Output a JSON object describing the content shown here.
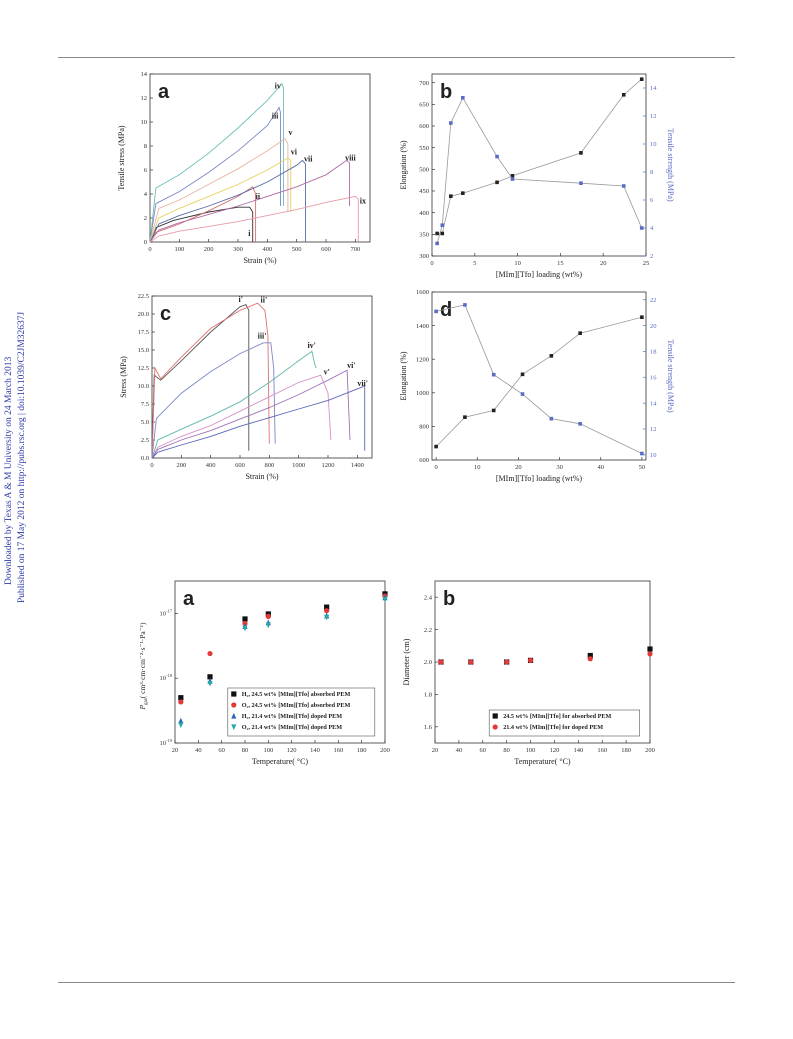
{
  "watermark": {
    "line1": "Downloaded by Texas A & M University on 24 March 2013",
    "line2": "Published on 17 May 2012 on http://pubs.rsc.org | doi:10.1039/C2JM32637J",
    "color": "#2a3aa8"
  },
  "chart_data": [
    {
      "id": "fig1a",
      "type": "line",
      "panel_label": "a",
      "xlabel": "Strain (%)",
      "ylabel": "Tensile stress (MPa)",
      "xlim": [
        0,
        750
      ],
      "ylim": [
        0,
        14
      ],
      "xticks": [
        0,
        100,
        200,
        300,
        400,
        500,
        600,
        700
      ],
      "yticks": [
        0,
        2,
        4,
        6,
        8,
        10,
        12,
        14
      ],
      "series": [
        {
          "name": "i",
          "color": "#303030",
          "x": [
            0,
            20,
            80,
            200,
            300,
            340,
            350,
            350
          ],
          "y": [
            0,
            1.2,
            1.8,
            2.5,
            2.9,
            2.9,
            2.5,
            0
          ]
        },
        {
          "name": "ii",
          "color": "#d66e6e",
          "x": [
            0,
            20,
            100,
            200,
            300,
            350,
            360,
            360
          ],
          "y": [
            0,
            0.8,
            1.5,
            2.6,
            3.8,
            4.6,
            4.0,
            0
          ]
        },
        {
          "name": "iii",
          "color": "#7a86c8",
          "x": [
            0,
            20,
            100,
            200,
            300,
            400,
            440,
            445,
            445
          ],
          "y": [
            0,
            3.2,
            4.2,
            5.8,
            7.6,
            9.7,
            11.2,
            10.8,
            3.0
          ]
        },
        {
          "name": "iv",
          "color": "#6ac0b8",
          "x": [
            0,
            20,
            100,
            200,
            300,
            400,
            450,
            455,
            455
          ],
          "y": [
            0,
            4.5,
            5.6,
            7.4,
            9.5,
            11.8,
            13.2,
            12.8,
            3.0
          ]
        },
        {
          "name": "v",
          "color": "#e8b4a0",
          "x": [
            0,
            30,
            100,
            200,
            300,
            400,
            460,
            470,
            470
          ],
          "y": [
            0,
            2.8,
            3.5,
            4.8,
            6.1,
            7.6,
            8.6,
            8.2,
            2.5
          ]
        },
        {
          "name": "vi",
          "color": "#e6d060",
          "x": [
            0,
            30,
            100,
            200,
            300,
            400,
            470,
            480,
            480
          ],
          "y": [
            0,
            2.0,
            2.8,
            3.8,
            4.8,
            6.0,
            7.0,
            6.8,
            2.5
          ]
        },
        {
          "name": "vii",
          "color": "#5a6aa8",
          "x": [
            0,
            30,
            100,
            200,
            300,
            400,
            500,
            520,
            530,
            530
          ],
          "y": [
            0,
            1.5,
            2.2,
            3.0,
            3.9,
            5.0,
            6.4,
            6.8,
            6.5,
            0
          ]
        },
        {
          "name": "viii",
          "color": "#b06aa0",
          "x": [
            0,
            30,
            100,
            200,
            300,
            400,
            500,
            600,
            670,
            680,
            680
          ],
          "y": [
            0,
            1.0,
            1.6,
            2.3,
            3.0,
            3.8,
            4.6,
            5.6,
            6.8,
            6.6,
            3.0
          ]
        },
        {
          "name": "ix",
          "color": "#e89aa8",
          "x": [
            0,
            30,
            100,
            200,
            300,
            400,
            500,
            600,
            700,
            710,
            710
          ],
          "y": [
            0,
            0.5,
            0.9,
            1.3,
            1.7,
            2.2,
            2.7,
            3.3,
            3.8,
            3.6,
            0
          ]
        }
      ],
      "annotations": [
        {
          "text": "iv",
          "x": 425,
          "y": 12.8
        },
        {
          "text": "iii",
          "x": 415,
          "y": 10.3
        },
        {
          "text": "v",
          "x": 472,
          "y": 8.9
        },
        {
          "text": "vi",
          "x": 480,
          "y": 7.3
        },
        {
          "text": "vii",
          "x": 525,
          "y": 6.7
        },
        {
          "text": "viii",
          "x": 665,
          "y": 6.8
        },
        {
          "text": "ii",
          "x": 360,
          "y": 3.6
        },
        {
          "text": "ix",
          "x": 715,
          "y": 3.2
        },
        {
          "text": "i",
          "x": 335,
          "y": 0.5
        }
      ],
      "grid": false
    },
    {
      "id": "fig1b",
      "type": "line",
      "panel_label": "b",
      "xlabel": "[MIm][Tfo] loading (wt%)",
      "ylabel": "Elongation (%)",
      "y2label": "Tensile strength (MPa)",
      "xlim": [
        0,
        25
      ],
      "ylim": [
        300,
        720
      ],
      "y2lim": [
        2,
        15
      ],
      "xticks": [
        0,
        5,
        10,
        15,
        20,
        25
      ],
      "yticks": [
        300,
        350,
        400,
        450,
        500,
        550,
        600,
        650,
        700
      ],
      "y2ticks": [
        2,
        4,
        6,
        8,
        10,
        12,
        14
      ],
      "series": [
        {
          "name": "Elongation",
          "axis": "left",
          "color": "#222222",
          "x": [
            0.6,
            1.2,
            2.2,
            3.6,
            7.6,
            9.4,
            17.4,
            22.4,
            24.5
          ],
          "y": [
            352,
            352,
            438,
            445,
            470,
            485,
            538,
            672,
            708
          ]
        },
        {
          "name": "Tensile strength",
          "axis": "right",
          "color": "#5a6cc4",
          "x": [
            0.6,
            1.2,
            2.2,
            3.6,
            7.6,
            9.4,
            17.4,
            22.4,
            24.5
          ],
          "y": [
            2.9,
            4.2,
            11.5,
            13.3,
            9.1,
            7.5,
            7.2,
            7.0,
            4.0
          ]
        }
      ],
      "grid": false
    },
    {
      "id": "fig1c",
      "type": "line",
      "panel_label": "c",
      "xlabel": "Strain (%)",
      "ylabel": "Stress (MPa)",
      "xlim": [
        0,
        1500
      ],
      "ylim": [
        0,
        22.5
      ],
      "xticks": [
        0,
        200,
        400,
        600,
        800,
        1000,
        1200,
        1400
      ],
      "yticks": [
        0.0,
        2.5,
        5.0,
        7.5,
        10.0,
        12.5,
        15.0,
        17.5,
        20.0,
        22.5
      ],
      "series": [
        {
          "name": "i'",
          "color": "#555555",
          "x": [
            0,
            15,
            60,
            200,
            400,
            600,
            640,
            660,
            660
          ],
          "y": [
            0,
            11.5,
            10.8,
            13.5,
            17.5,
            21.0,
            21.3,
            20.5,
            1.0
          ]
        },
        {
          "name": "ii'",
          "color": "#e07070",
          "x": [
            0,
            20,
            60,
            200,
            400,
            600,
            720,
            770,
            790,
            800
          ],
          "y": [
            0,
            12.5,
            11.0,
            14.0,
            18.0,
            20.5,
            21.5,
            20.5,
            17.0,
            2.0
          ]
        },
        {
          "name": "iii'",
          "color": "#7a86c8",
          "x": [
            0,
            30,
            200,
            400,
            600,
            760,
            810,
            830,
            840
          ],
          "y": [
            0,
            5.5,
            9.0,
            12.0,
            14.5,
            16.0,
            16.0,
            12.5,
            2.0
          ]
        },
        {
          "name": "iv'",
          "color": "#5cb8a8",
          "x": [
            0,
            40,
            200,
            400,
            600,
            800,
            1000,
            1090,
            1110,
            1120
          ],
          "y": [
            0,
            2.5,
            4.0,
            5.8,
            7.8,
            10.5,
            13.5,
            14.8,
            13.0,
            12.5
          ]
        },
        {
          "name": "v'",
          "color": "#d890c8",
          "x": [
            0,
            40,
            200,
            400,
            600,
            800,
            1000,
            1150,
            1200,
            1220
          ],
          "y": [
            0,
            1.5,
            3.0,
            4.5,
            6.5,
            8.5,
            10.5,
            11.5,
            9.0,
            2.5
          ]
        },
        {
          "name": "vi'",
          "color": "#a070b8",
          "x": [
            0,
            40,
            200,
            400,
            600,
            800,
            1000,
            1200,
            1330,
            1350
          ],
          "y": [
            0,
            1.2,
            2.5,
            3.8,
            5.4,
            7.0,
            8.8,
            10.8,
            12.2,
            2.5
          ]
        },
        {
          "name": "vii'",
          "color": "#5a66b8",
          "x": [
            0,
            40,
            200,
            400,
            600,
            800,
            1000,
            1200,
            1400,
            1450,
            1450
          ],
          "y": [
            0,
            0.8,
            1.8,
            3.0,
            4.4,
            5.6,
            6.8,
            8.0,
            9.6,
            10.0,
            1.0
          ]
        }
      ],
      "annotations": [
        {
          "text": "i'",
          "x": 590,
          "y": 21.7
        },
        {
          "text": "ii'",
          "x": 740,
          "y": 21.6
        },
        {
          "text": "iii'",
          "x": 720,
          "y": 16.6
        },
        {
          "text": "iv'",
          "x": 1060,
          "y": 15.3
        },
        {
          "text": "v'",
          "x": 1170,
          "y": 11.6
        },
        {
          "text": "vi'",
          "x": 1330,
          "y": 12.5
        },
        {
          "text": "vii'",
          "x": 1400,
          "y": 10.0
        }
      ],
      "grid": false
    },
    {
      "id": "fig1d",
      "type": "line",
      "panel_label": "d",
      "xlabel": "[MIm][Tfo] loading (wt%)",
      "ylabel": "Elongation (%)",
      "y2label": "Tensile strength (MPa)",
      "xlim": [
        -1,
        51
      ],
      "ylim": [
        600,
        1600
      ],
      "y2lim": [
        9.6,
        22.6
      ],
      "xticks": [
        0,
        10,
        20,
        30,
        40,
        50
      ],
      "yticks": [
        600,
        800,
        1000,
        1200,
        1400,
        1600
      ],
      "y2ticks": [
        10,
        12,
        14,
        16,
        18,
        20,
        22
      ],
      "series": [
        {
          "name": "Elongation",
          "axis": "left",
          "color": "#222222",
          "x": [
            0,
            7,
            14,
            21,
            28,
            35,
            50
          ],
          "y": [
            680,
            855,
            895,
            1110,
            1220,
            1355,
            1450
          ]
        },
        {
          "name": "Tensile strength",
          "axis": "right",
          "color": "#5a6cc4",
          "x": [
            0,
            7,
            14,
            21,
            28,
            35,
            50
          ],
          "y": [
            21.1,
            21.6,
            16.2,
            14.7,
            12.8,
            12.4,
            10.1
          ]
        }
      ],
      "grid": false
    },
    {
      "id": "fig2a",
      "type": "scatter",
      "panel_label": "a",
      "xlabel": "Temperature( °C)",
      "xlim": [
        20,
        200
      ],
      "ylim_log10": [
        -19,
        -16.5
      ],
      "y_scale": "log",
      "xticks": [
        20,
        40,
        60,
        80,
        100,
        120,
        140,
        160,
        180,
        200
      ],
      "yticks_exp": [
        -19,
        -18,
        -17
      ],
      "series": [
        {
          "name": "H₂, 24.5 wt% [MIm][Tfo] absorbed PEM",
          "marker": "square",
          "color": "#111111",
          "x": [
            25,
            50,
            80,
            100,
            150,
            200
          ],
          "y": [
            5e-19,
            1.05e-18,
            8.2e-18,
            9.8e-18,
            1.25e-17,
            2e-17
          ]
        },
        {
          "name": "O₂, 24.5 wt% [MIm][Tfo] absorbed PEM",
          "marker": "circle",
          "color": "#e03a3a",
          "x": [
            25,
            50,
            80,
            100,
            150,
            200
          ],
          "y": [
            4.3e-19,
            2.4e-18,
            7e-18,
            9e-18,
            1.1e-17,
            1.85e-17
          ]
        },
        {
          "name": "H₂, 21.4 wt% [MIm][Tfo] doped PEM",
          "marker": "triangle-up",
          "color": "#2a6ab8",
          "x": [
            25,
            50,
            80,
            100,
            150,
            200
          ],
          "y": [
            2.2e-19,
            9e-19,
            6.3e-18,
            7.2e-18,
            9.2e-18,
            1.75e-17
          ]
        },
        {
          "name": "O₂, 21.4 wt% [MIm][Tfo] doped PEM",
          "marker": "triangle-down",
          "color": "#2aa8a8",
          "x": [
            25,
            50,
            80,
            100,
            150,
            200
          ],
          "y": [
            1.9e-19,
            8.3e-19,
            5.9e-18,
            6.6e-18,
            8.7e-18,
            1.65e-17
          ]
        }
      ],
      "legend": "bottom-right",
      "grid": false
    },
    {
      "id": "fig2b",
      "type": "scatter",
      "panel_label": "b",
      "xlabel": "Temperature( °C)",
      "ylabel": "Diameter (cm)",
      "xlim": [
        20,
        200
      ],
      "ylim": [
        1.5,
        2.5
      ],
      "xticks": [
        20,
        40,
        60,
        80,
        100,
        120,
        140,
        160,
        180,
        200
      ],
      "yticks": [
        1.6,
        1.8,
        2.0,
        2.2,
        2.4
      ],
      "series": [
        {
          "name": "24.5 wt% [MIm][Tfo] for absorbed PEM",
          "marker": "square",
          "color": "#111111",
          "x": [
            25,
            50,
            80,
            100,
            150,
            200
          ],
          "y": [
            2.0,
            2.0,
            2.0,
            2.01,
            2.04,
            2.08
          ]
        },
        {
          "name": "21.4 wt% [MIm][Tfo] for doped PEM",
          "marker": "circle",
          "color": "#e03a3a",
          "x": [
            25,
            50,
            80,
            100,
            150,
            200
          ],
          "y": [
            2.0,
            2.0,
            2.0,
            2.01,
            2.02,
            2.05
          ]
        }
      ],
      "legend": "bottom-right",
      "grid": false
    }
  ],
  "fig2a_ylabel": {
    "prefix": "P",
    "subscript": "gas",
    "units": "( cm³·cm·cm⁻²·s⁻¹·Pa⁻¹)"
  }
}
